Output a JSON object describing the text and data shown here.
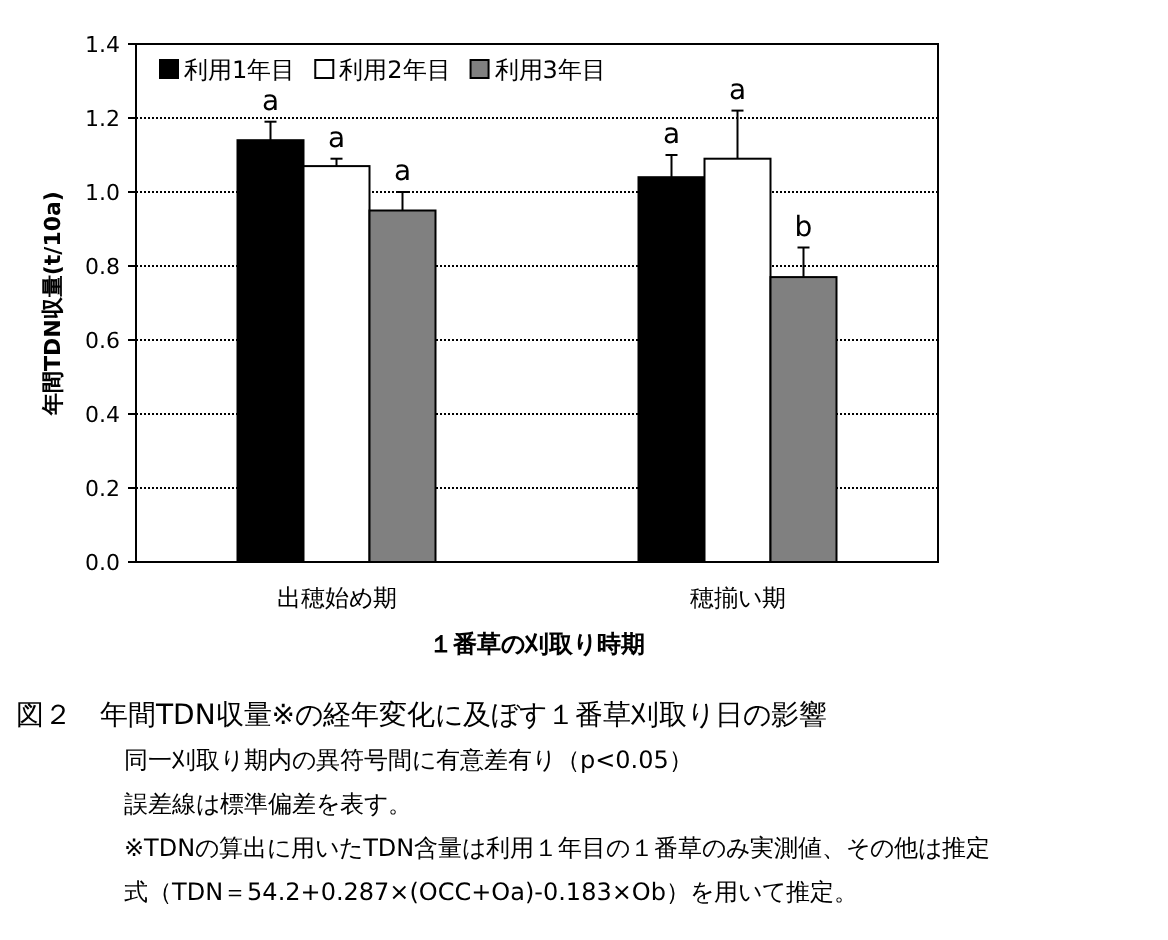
{
  "chart_data": {
    "type": "bar",
    "xlabel": "１番草の刈取り時期",
    "ylabel": "年間TDN収量(t/10a)",
    "categories": [
      "出穂始め期",
      "穂揃い期"
    ],
    "series": [
      {
        "name": "利用1年目",
        "color": "#000000",
        "values": [
          1.14,
          1.04
        ],
        "errors": [
          [
            1.14,
            1.19
          ],
          [
            1.04,
            1.1
          ]
        ]
      },
      {
        "name": "利用2年目",
        "color": "#ffffff",
        "values": [
          1.07,
          1.09
        ],
        "errors": [
          [
            1.07,
            1.09
          ],
          [
            1.09,
            1.22
          ]
        ]
      },
      {
        "name": "利用3年目",
        "color": "#808080",
        "values": [
          0.95,
          0.77
        ],
        "errors": [
          [
            0.95,
            1.0
          ],
          [
            0.77,
            0.85
          ]
        ]
      }
    ],
    "ylim": [
      0,
      1.4
    ],
    "yticks": [
      {
        "value": 0,
        "label": "0.0"
      },
      0.2,
      0.4,
      0.6,
      0.8,
      {
        "value": 1,
        "label": "1.0"
      },
      1.2,
      1.4
    ],
    "grid": "y",
    "legend": "top left",
    "annotations": [
      "a",
      "a",
      "a",
      "a",
      "a",
      "b",
      "図２　年間TDN収量※の経年変化に及ぼす１番草刈取り日の影響",
      "同一刈取り期内の異符号間に有意差有り（p<0.05）",
      "誤差線は標準偏差を表す。",
      "※TDNの算出に用いたTDN含量は利用１年目の１番草のみ実測値、その他は推定",
      "式（TDN＝54.2+0.287×(OCC+Oa)-0.183×Ob）を用いて推定。"
    ]
  }
}
